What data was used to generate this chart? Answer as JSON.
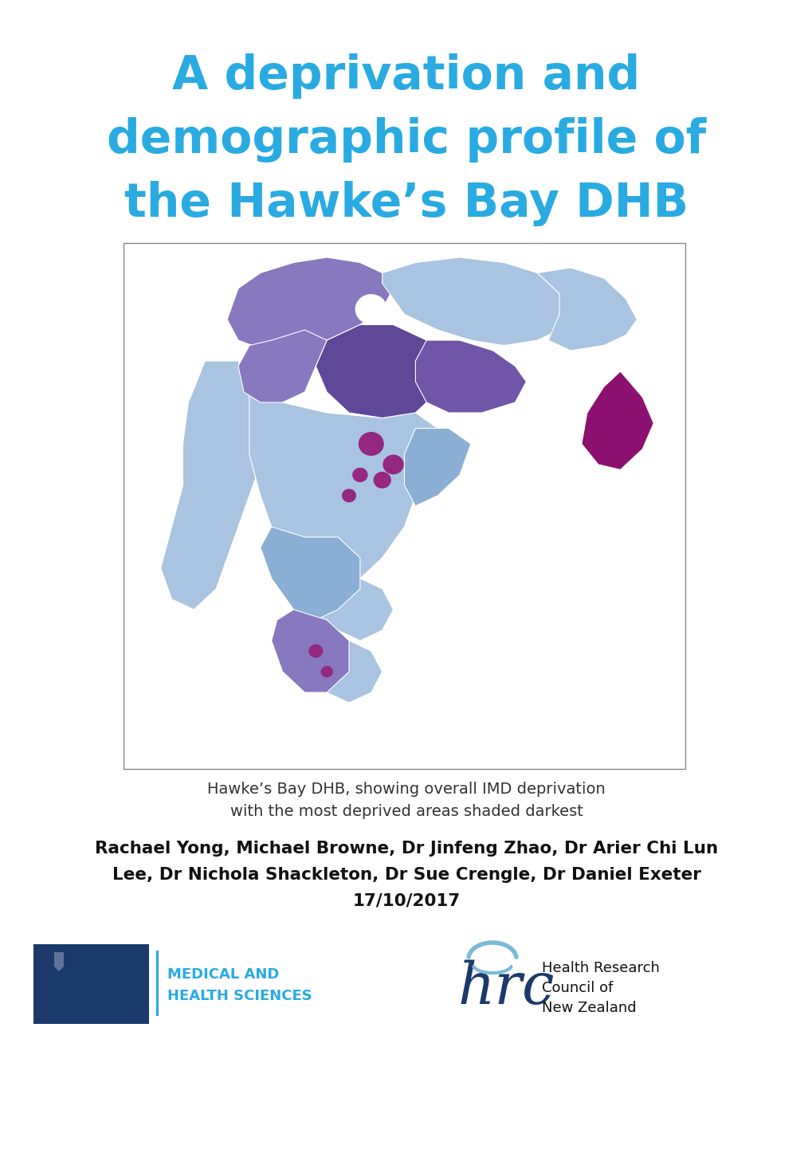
{
  "title_line1": "A deprivation and",
  "title_line2": "demographic profile of",
  "title_line3": "the Hawke’s Bay DHB",
  "title_color": "#29ABE2",
  "map_caption_line1": "Hawke’s Bay DHB, showing overall IMD deprivation",
  "map_caption_line2": "with the most deprived areas shaded darkest",
  "authors_line1": "Rachael Yong, Michael Browne, Dr Jinfeng Zhao, Dr Arier Chi Lun",
  "authors_line2": "Lee, Dr Nichola Shackleton, Dr Sue Crengle, Dr Daniel Exeter",
  "authors_line3": "17/10/2017",
  "background_color": "#ffffff",
  "uoa_text_line1": "MEDICAL AND",
  "uoa_text_line2": "HEALTH SCIENCES",
  "uoa_text_color": "#29ABE2",
  "hrc_text_line1": "Health Research",
  "hrc_text_line2": "Council of",
  "hrc_text_line3": "New Zealand",
  "col_light_blue": "#A8C4E0",
  "col_mid_blue": "#8BAFD4",
  "col_blue_purple": "#8878C0",
  "col_purple": "#7055A8",
  "col_dark_purple": "#604898",
  "col_very_dark": "#952880",
  "col_darkest": "#8B1070"
}
